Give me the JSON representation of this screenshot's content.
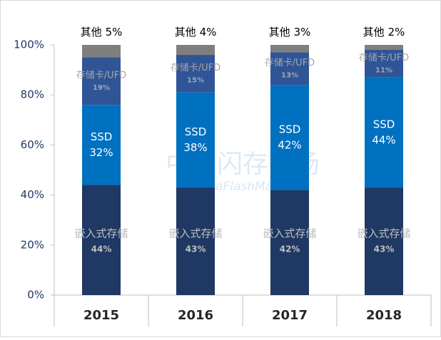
{
  "chart_data": {
    "type": "stacked_bar",
    "categories": [
      "2015",
      "2016",
      "2017",
      "2018"
    ],
    "series": [
      {
        "name": "嵌入式存储",
        "color": "#1f3864",
        "values": [
          44,
          43,
          42,
          43
        ],
        "value_labels": [
          "44%",
          "43%",
          "42%",
          "43%"
        ]
      },
      {
        "name": "SSD",
        "color": "#0070c0",
        "values": [
          32,
          38,
          42,
          44
        ],
        "value_labels": [
          "32%",
          "38%",
          "42%",
          "44%"
        ]
      },
      {
        "name": "存储卡/UFD",
        "color": "#2f5597",
        "values": [
          19,
          15,
          13,
          11
        ],
        "value_labels": [
          "19%",
          "15%",
          "13%",
          "11%"
        ]
      },
      {
        "name": "其他",
        "color": "#7f7f7f",
        "values": [
          5,
          4,
          3,
          2
        ],
        "value_labels": [
          "5%",
          "4%",
          "3%",
          "2%"
        ]
      }
    ],
    "ylim": [
      0,
      100
    ],
    "yticks": [
      {
        "value": 0,
        "label": "0%"
      },
      {
        "value": 20,
        "label": "20%"
      },
      {
        "value": 40,
        "label": "40%"
      },
      {
        "value": 60,
        "label": "60%"
      },
      {
        "value": 80,
        "label": "80%"
      },
      {
        "value": 100,
        "label": "100%"
      }
    ],
    "watermark": [
      "中国闪存市场",
      "ChinaFlashMarket"
    ]
  }
}
